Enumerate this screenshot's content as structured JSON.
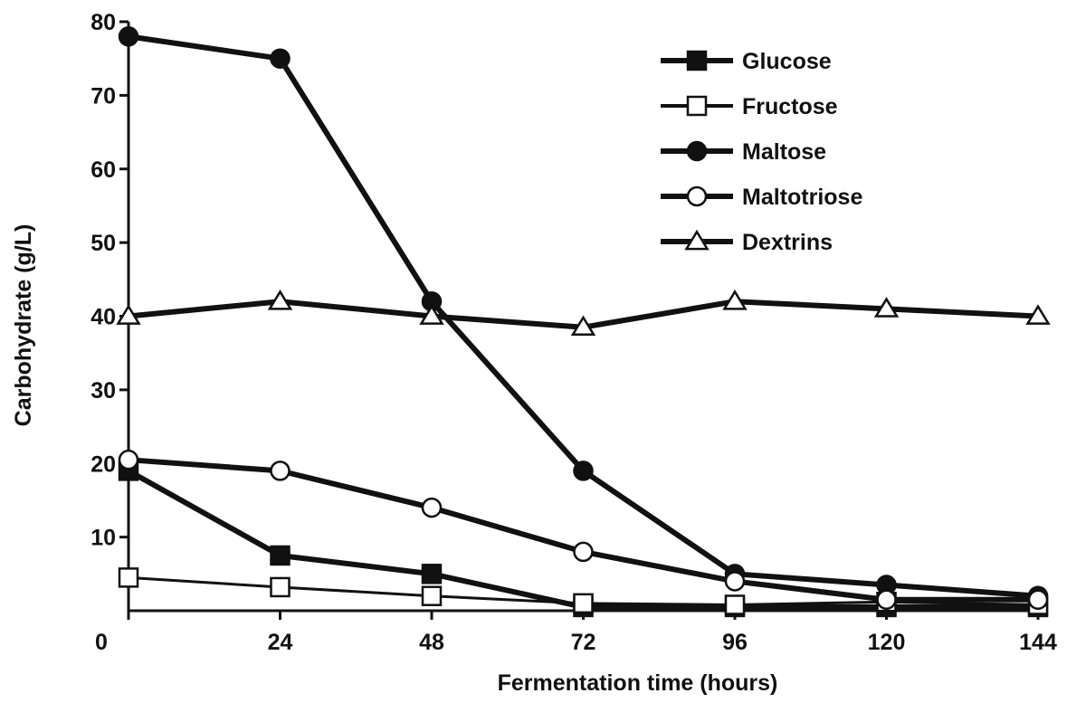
{
  "chart_data": {
    "type": "line",
    "title": "",
    "xlabel": "Fermentation time (hours)",
    "ylabel": "Carbohydrate (g/L)",
    "xlim": [
      0,
      144
    ],
    "ylim": [
      0,
      80
    ],
    "x_ticks": [
      0,
      24,
      48,
      72,
      96,
      120,
      144
    ],
    "y_ticks": [
      10,
      20,
      30,
      40,
      50,
      60,
      70,
      80
    ],
    "x_tick_labels": [
      "0",
      "24",
      "48",
      "72",
      "96",
      "120",
      "144"
    ],
    "y_tick_labels": [
      "10",
      "20",
      "30",
      "40",
      "50",
      "60",
      "70",
      "80"
    ],
    "grid": false,
    "legend_position": "top-right",
    "x": [
      0,
      24,
      48,
      72,
      96,
      120,
      144
    ],
    "series": [
      {
        "name": "Glucose",
        "marker": "square-filled",
        "line_width": "thick",
        "values": [
          19,
          7.5,
          5,
          0.5,
          0.5,
          0.5,
          0.5
        ]
      },
      {
        "name": "Fructose",
        "marker": "square-open",
        "line_width": "thin",
        "values": [
          4.5,
          3.2,
          2,
          1,
          0.8,
          1.2,
          0.8
        ]
      },
      {
        "name": "Maltose",
        "marker": "circle-filled",
        "line_width": "thick",
        "values": [
          78,
          75,
          42,
          19,
          5,
          3.5,
          2
        ]
      },
      {
        "name": "Maltotriose",
        "marker": "circle-open",
        "line_width": "thick",
        "values": [
          20.5,
          19,
          14,
          8,
          4,
          1.5,
          1.5
        ]
      },
      {
        "name": "Dextrins",
        "marker": "triangle-open",
        "line_width": "thick",
        "values": [
          40,
          42,
          40,
          38.5,
          42,
          41,
          40
        ]
      }
    ]
  },
  "colors": {
    "ink": "#111111",
    "background": "#ffffff"
  }
}
